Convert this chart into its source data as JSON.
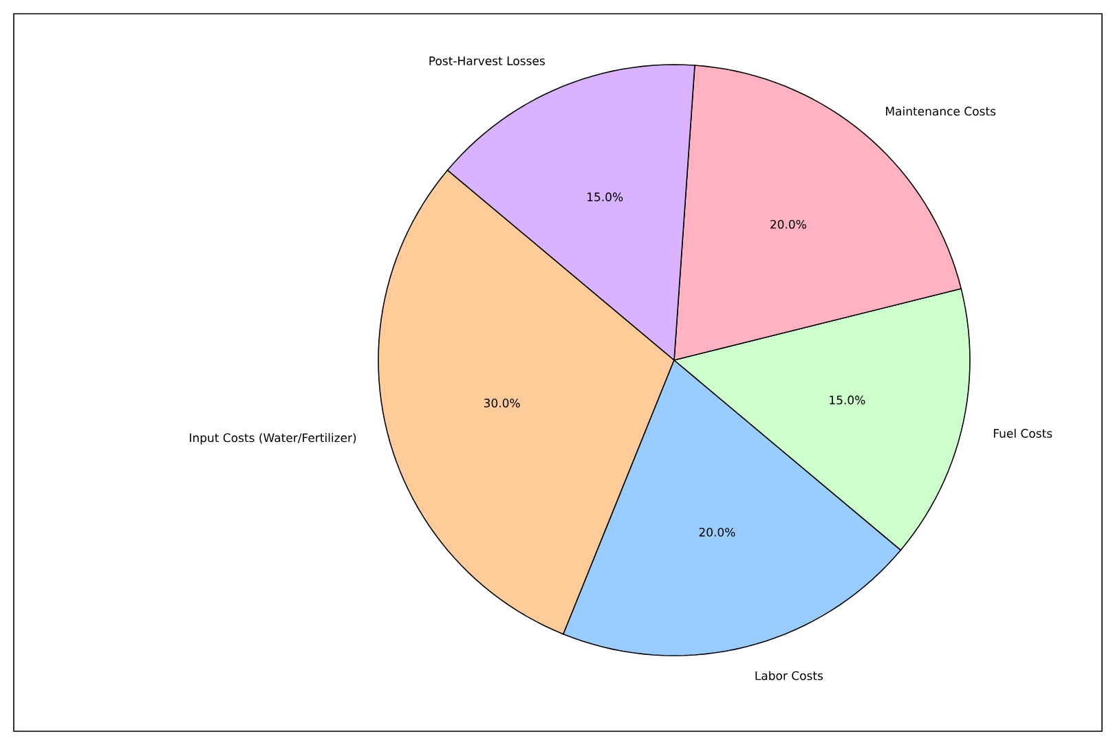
{
  "chart_data": {
    "type": "pie",
    "categories": [
      "Input Costs (Water/Fertilizer)",
      "Labor Costs",
      "Fuel Costs",
      "Maintenance Costs",
      "Post-Harvest Losses"
    ],
    "values": [
      30,
      20,
      15,
      20,
      15
    ],
    "colors": [
      "#ffcc99",
      "#99ccff",
      "#ccffcc",
      "#ffb3c1",
      "#d9b3ff"
    ],
    "value_labels": [
      "30.0%",
      "20.0%",
      "15.0%",
      "20.0%",
      "15.0%"
    ]
  }
}
